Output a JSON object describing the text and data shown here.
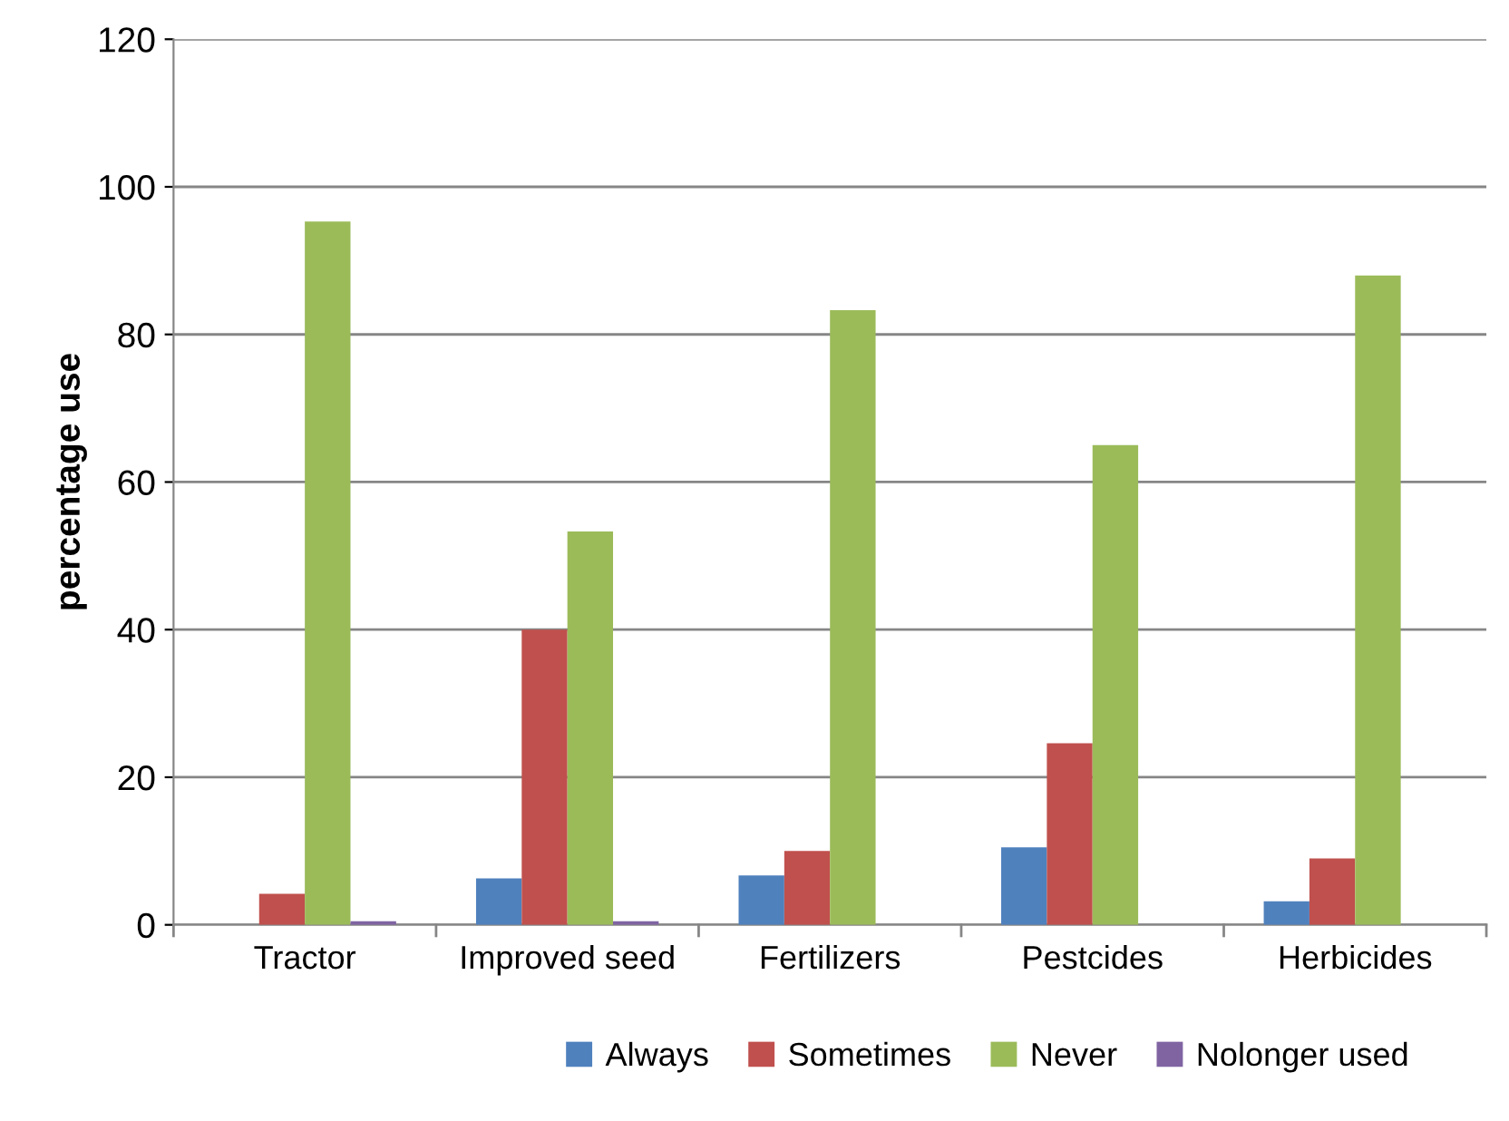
{
  "chart_data": {
    "type": "bar",
    "ylabel": "percentage use",
    "categories": [
      "Tractor",
      "Improved seed",
      "Fertilizers",
      "Pestcides",
      "Herbicides"
    ],
    "series": [
      {
        "name": "Always",
        "color": "#4f81bd",
        "values": [
          0,
          6.3,
          6.7,
          10.5,
          3.2
        ]
      },
      {
        "name": "Sometimes",
        "color": "#c0504d",
        "values": [
          4.2,
          40,
          10,
          24.6,
          9
        ]
      },
      {
        "name": "Never",
        "color": "#9bbb59",
        "values": [
          95.3,
          53.3,
          83.3,
          65,
          88
        ]
      },
      {
        "name": "Nolonger used",
        "color": "#8064a2",
        "values": [
          0.5,
          0.5,
          0,
          0,
          0
        ]
      }
    ],
    "ylim": [
      0,
      120
    ],
    "yticks": [
      0,
      20,
      40,
      60,
      80,
      100,
      120
    ],
    "grid": "y",
    "legend": "bottom"
  }
}
